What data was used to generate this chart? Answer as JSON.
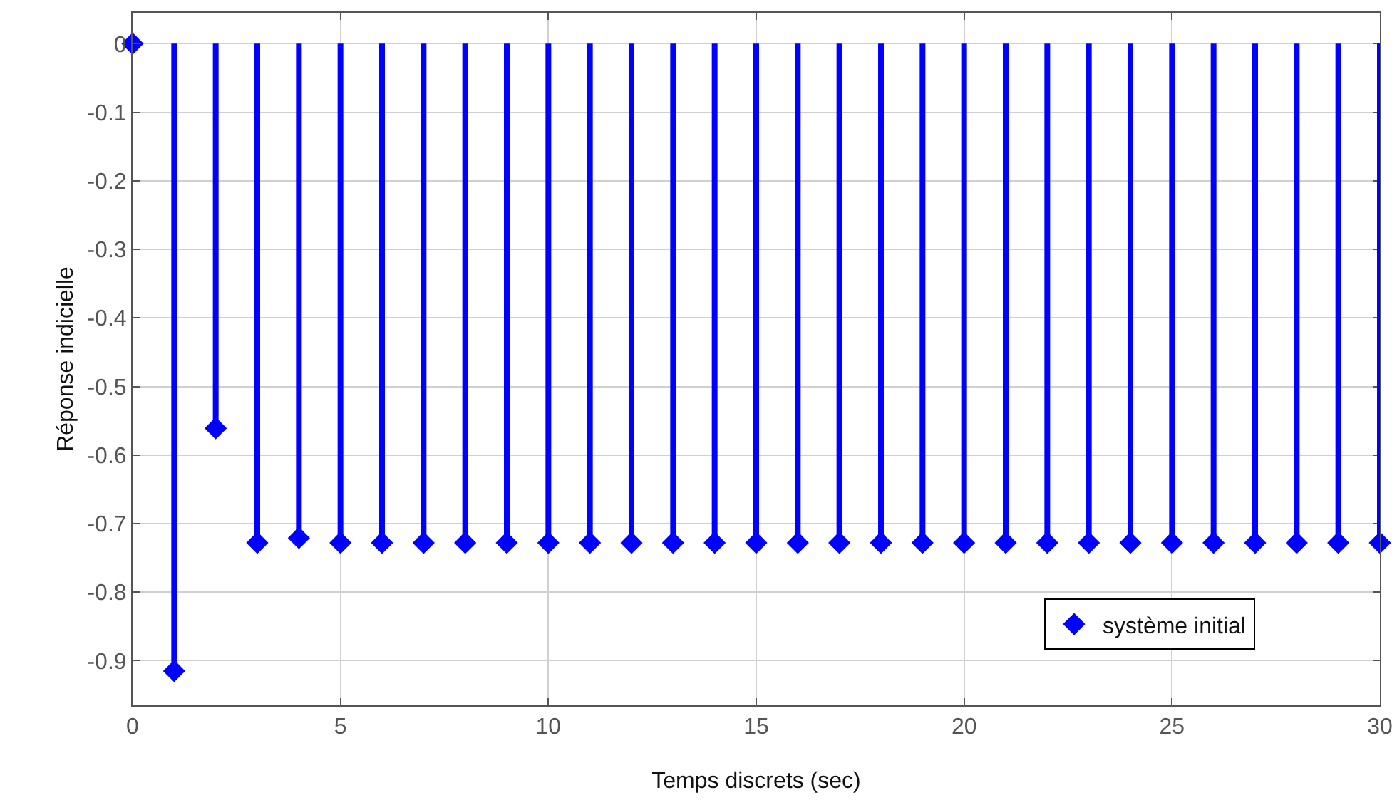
{
  "chart_data": {
    "type": "lollipop",
    "xlabel": "Temps discrets (sec)",
    "ylabel": "Réponse indicielle",
    "x": [
      0,
      1,
      2,
      3,
      4,
      5,
      6,
      7,
      8,
      9,
      10,
      11,
      12,
      13,
      14,
      15,
      16,
      17,
      18,
      19,
      20,
      21,
      22,
      23,
      24,
      25,
      26,
      27,
      28,
      29,
      30
    ],
    "series": [
      {
        "name": "système initial",
        "color": "#0000ff",
        "values": [
          0,
          -0.915,
          -0.561,
          -0.728,
          -0.721,
          -0.728,
          -0.728,
          -0.728,
          -0.728,
          -0.728,
          -0.728,
          -0.728,
          -0.728,
          -0.728,
          -0.728,
          -0.728,
          -0.728,
          -0.728,
          -0.728,
          -0.728,
          -0.728,
          -0.728,
          -0.728,
          -0.728,
          -0.728,
          -0.728,
          -0.728,
          -0.728,
          -0.728,
          -0.728,
          -0.728
        ]
      }
    ],
    "xlim": [
      0,
      30
    ],
    "xticks": [
      0,
      5,
      10,
      15,
      20,
      25,
      30
    ],
    "ylim": [
      -0.965,
      0.045
    ],
    "yticks": [
      0,
      -0.1,
      -0.2,
      -0.3,
      -0.4,
      -0.5,
      -0.6,
      -0.7,
      -0.8,
      -0.9
    ],
    "grid": true,
    "legend": "bottom right",
    "marker": "diamond",
    "line_style": "solid"
  }
}
